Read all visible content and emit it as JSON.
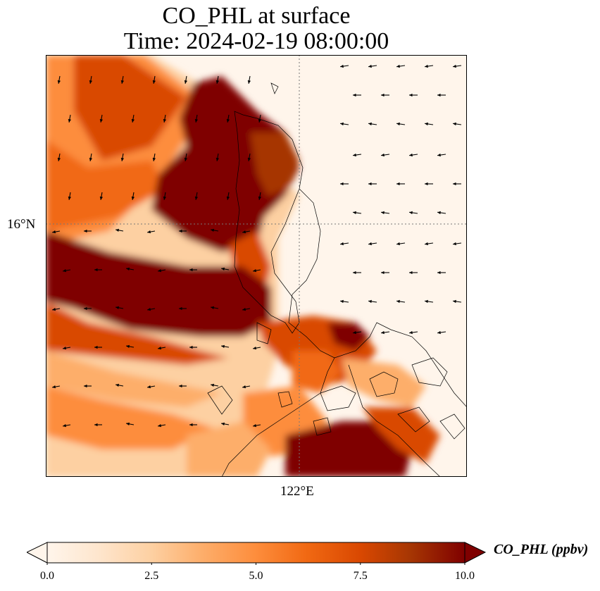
{
  "title": {
    "line1": "CO_PHL at surface",
    "line2": "Time: 2024-02-19 08:00:00"
  },
  "axes": {
    "lat_label": "16°N",
    "lon_label": "122°E"
  },
  "colorbar": {
    "label": "CO_PHL (ppbv)",
    "min": 0.0,
    "max": 10.0,
    "extend": "both",
    "ticks": [
      "0.0",
      "2.5",
      "5.0",
      "7.5",
      "10.0"
    ],
    "colors": [
      "#fff5eb",
      "#fee6ce",
      "#fdd0a2",
      "#fdae6b",
      "#fd8d3c",
      "#f16913",
      "#d94801",
      "#a63603",
      "#7f0000"
    ]
  },
  "field": {
    "variable": "CO_PHL",
    "units": "ppbv",
    "level": "surface",
    "description_plumes": "high concentration plume offshore west, inland cluster north, southern lowlands"
  },
  "wind_vectors": {
    "present": true,
    "color": "#000000"
  },
  "coastline_color": "#000000",
  "gridline_color": "#777777"
}
